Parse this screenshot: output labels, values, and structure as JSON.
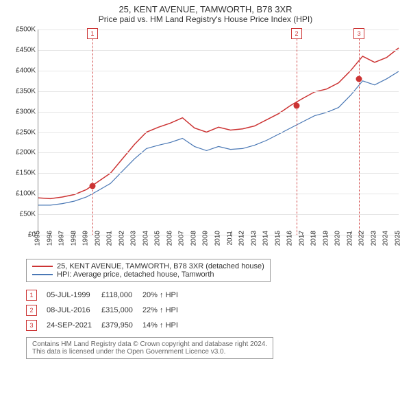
{
  "title_line1": "25, KENT AVENUE, TAMWORTH, B78 3XR",
  "title_line2": "Price paid vs. HM Land Registry's House Price Index (HPI)",
  "chart": {
    "type": "line",
    "background_color": "#ffffff",
    "grid_color": "#e6e6e6",
    "axis_color": "#888888",
    "y": {
      "min": 0,
      "max": 500000,
      "step": 50000,
      "prefix": "£",
      "suffix": "K",
      "ticks": [
        "£0",
        "£50K",
        "£100K",
        "£150K",
        "£200K",
        "£250K",
        "£300K",
        "£350K",
        "£400K",
        "£450K",
        "£500K"
      ]
    },
    "x": {
      "years": [
        1995,
        1996,
        1997,
        1998,
        1999,
        2000,
        2001,
        2002,
        2003,
        2004,
        2005,
        2006,
        2007,
        2008,
        2009,
        2010,
        2011,
        2012,
        2013,
        2014,
        2015,
        2016,
        2017,
        2018,
        2019,
        2020,
        2021,
        2022,
        2023,
        2024,
        2025
      ]
    },
    "series_red": {
      "label": "25, KENT AVENUE, TAMWORTH, B78 3XR (detached house)",
      "color": "#cc3333",
      "width": 1.5,
      "points": [
        [
          1995,
          90000
        ],
        [
          1996,
          88000
        ],
        [
          1997,
          92000
        ],
        [
          1998,
          98000
        ],
        [
          1999,
          110000
        ],
        [
          2000,
          130000
        ],
        [
          2001,
          150000
        ],
        [
          2002,
          185000
        ],
        [
          2003,
          220000
        ],
        [
          2004,
          250000
        ],
        [
          2005,
          262000
        ],
        [
          2006,
          272000
        ],
        [
          2007,
          285000
        ],
        [
          2008,
          260000
        ],
        [
          2009,
          250000
        ],
        [
          2010,
          262000
        ],
        [
          2011,
          255000
        ],
        [
          2012,
          258000
        ],
        [
          2013,
          265000
        ],
        [
          2014,
          280000
        ],
        [
          2015,
          295000
        ],
        [
          2016,
          315000
        ],
        [
          2017,
          332000
        ],
        [
          2018,
          348000
        ],
        [
          2019,
          355000
        ],
        [
          2020,
          370000
        ],
        [
          2021,
          400000
        ],
        [
          2022,
          435000
        ],
        [
          2023,
          420000
        ],
        [
          2024,
          432000
        ],
        [
          2025,
          455000
        ]
      ]
    },
    "series_blue": {
      "label": "HPI: Average price, detached house, Tamworth",
      "color": "#4a78b5",
      "width": 1.2,
      "points": [
        [
          1995,
          72000
        ],
        [
          1996,
          72000
        ],
        [
          1997,
          76000
        ],
        [
          1998,
          82000
        ],
        [
          1999,
          92000
        ],
        [
          2000,
          108000
        ],
        [
          2001,
          125000
        ],
        [
          2002,
          155000
        ],
        [
          2003,
          185000
        ],
        [
          2004,
          210000
        ],
        [
          2005,
          218000
        ],
        [
          2006,
          225000
        ],
        [
          2007,
          235000
        ],
        [
          2008,
          215000
        ],
        [
          2009,
          205000
        ],
        [
          2010,
          215000
        ],
        [
          2011,
          208000
        ],
        [
          2012,
          210000
        ],
        [
          2013,
          218000
        ],
        [
          2014,
          230000
        ],
        [
          2015,
          245000
        ],
        [
          2016,
          260000
        ],
        [
          2017,
          275000
        ],
        [
          2018,
          290000
        ],
        [
          2019,
          298000
        ],
        [
          2020,
          310000
        ],
        [
          2021,
          340000
        ],
        [
          2022,
          375000
        ],
        [
          2023,
          365000
        ],
        [
          2024,
          380000
        ],
        [
          2025,
          398000
        ]
      ]
    },
    "events": [
      {
        "n": "1",
        "date": "05-JUL-1999",
        "year": 1999.5,
        "price": "£118,000",
        "price_val": 118000,
        "delta": "20% ↑ HPI"
      },
      {
        "n": "2",
        "date": "08-JUL-2016",
        "year": 2016.5,
        "price": "£315,000",
        "price_val": 315000,
        "delta": "22% ↑ HPI"
      },
      {
        "n": "3",
        "date": "24-SEP-2021",
        "year": 2021.7,
        "price": "£379,950",
        "price_val": 379950,
        "delta": "14% ↑ HPI"
      }
    ]
  },
  "footer_line1": "Contains HM Land Registry data © Crown copyright and database right 2024.",
  "footer_line2": "This data is licensed under the Open Government Licence v3.0."
}
